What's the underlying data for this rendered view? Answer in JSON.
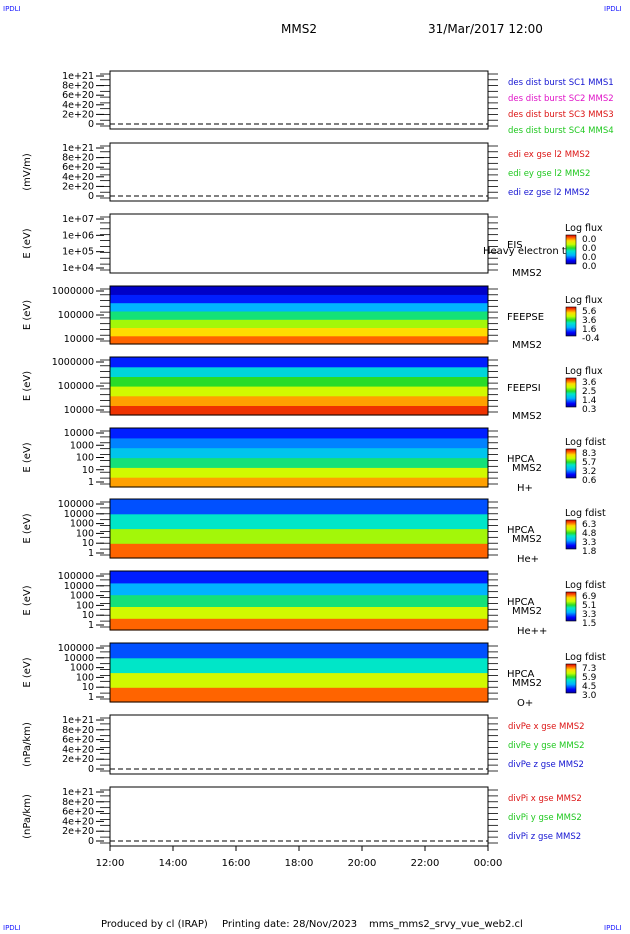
{
  "corner_mark": "IPDLI",
  "header": {
    "spacecraft": "MMS2",
    "datetime": "31/Mar/2017 12:00"
  },
  "footer": {
    "producer": "Produced by cl (IRAP)",
    "printing": "Printing date: 28/Nov/2023",
    "script": "mms_mms2_srvy_vue_web2.cl"
  },
  "colors": {
    "blue": "#1414d2",
    "magenta": "#e014c8",
    "red": "#dc1414",
    "green": "#1ec81e"
  },
  "chart_data": [
    {
      "type": "line",
      "id": "des-dist",
      "ylabel": "",
      "ticks": [
        "1e+21",
        "8e+20",
        "6e+20",
        "4e+20",
        "2e+20",
        "0"
      ],
      "legend": [
        {
          "text": "des dist burst SC1 MMS1",
          "color": "blue"
        },
        {
          "text": "des dist burst SC2 MMS2",
          "color": "magenta"
        },
        {
          "text": "des dist burst SC3 MMS3",
          "color": "red"
        },
        {
          "text": "des dist burst SC4 MMS4",
          "color": "green"
        }
      ]
    },
    {
      "type": "line",
      "id": "edi-e",
      "ylabel": "(mV/m)",
      "ticks": [
        "1e+21",
        "8e+20",
        "6e+20",
        "4e+20",
        "2e+20",
        "0"
      ],
      "legend": [
        {
          "text": "edi ex gse l2 MMS2",
          "color": "red"
        },
        {
          "text": "edi ey gse l2 MMS2",
          "color": "green"
        },
        {
          "text": "edi ez gse l2 MMS2",
          "color": "blue"
        }
      ]
    },
    {
      "type": "heatmap",
      "id": "eis",
      "ylabel": "E (eV)",
      "ticks": [
        "1e+07",
        "1e+06",
        "1e+05",
        "1e+04"
      ],
      "labels": [
        "EIS",
        "MMS2"
      ],
      "overlay": "Heavy electron to",
      "cbar_title": "Log flux",
      "cbar_values": [
        "0.0",
        "0.0",
        "0.0",
        "0.0"
      ],
      "z_profile": []
    },
    {
      "type": "heatmap",
      "id": "feeps-e",
      "ylabel": "E (eV)",
      "ticks": [
        "1000000",
        "100000",
        "10000"
      ],
      "labels": [
        "FEEPSE",
        "MMS2"
      ],
      "overlay": "",
      "cbar_title": "Log flux",
      "cbar_values": [
        "5.6",
        "3.6",
        "1.6",
        "-0.4"
      ],
      "z_profile": [
        0.1,
        0.2,
        0.35,
        0.5,
        0.7,
        0.85,
        0.95
      ]
    },
    {
      "type": "heatmap",
      "id": "feeps-i",
      "ylabel": "E (eV)",
      "ticks": [
        "1000000",
        "100000",
        "10000"
      ],
      "labels": [
        "FEEPSI",
        "MMS2"
      ],
      "overlay": "",
      "cbar_title": "Log flux",
      "cbar_values": [
        "3.6",
        "2.5",
        "1.4",
        "0.3"
      ],
      "z_profile": [
        0.05,
        0.15,
        0.3,
        0.45,
        0.6,
        0.85
      ]
    },
    {
      "type": "heatmap",
      "id": "hpca-h",
      "ylabel": "E (eV)",
      "ticks": [
        "10000",
        "1000",
        "100",
        "10",
        "1"
      ],
      "labels": [
        "HPCA",
        "MMS2",
        "H+"
      ],
      "overlay": "",
      "cbar_title": "Log fdist",
      "cbar_values": [
        "8.3",
        "5.7",
        "3.2",
        "0.6"
      ],
      "z_profile": [
        0.15,
        0.3,
        0.5,
        0.65,
        0.75,
        0.85
      ]
    },
    {
      "type": "heatmap",
      "id": "hpca-he",
      "ylabel": "E (eV)",
      "ticks": [
        "100000",
        "10000",
        "1000",
        "100",
        "10",
        "1"
      ],
      "labels": [
        "HPCA",
        "MMS2",
        "He+"
      ],
      "overlay": "",
      "cbar_title": "Log fdist",
      "cbar_values": [
        "6.3",
        "4.8",
        "3.3",
        "1.8"
      ],
      "z_profile": [
        0.1,
        0.35,
        0.55,
        0.8
      ]
    },
    {
      "type": "heatmap",
      "id": "hpca-he2",
      "ylabel": "E (eV)",
      "ticks": [
        "100000",
        "10000",
        "1000",
        "100",
        "10",
        "1"
      ],
      "labels": [
        "HPCA",
        "MMS2",
        "He++"
      ],
      "overlay": "",
      "cbar_title": "Log fdist",
      "cbar_values": [
        "6.9",
        "5.1",
        "3.3",
        "1.5"
      ],
      "z_profile": [
        0.1,
        0.3,
        0.5,
        0.7,
        0.85
      ]
    },
    {
      "type": "heatmap",
      "id": "hpca-o",
      "ylabel": "E (eV)",
      "ticks": [
        "100000",
        "10000",
        "1000",
        "100",
        "10",
        "1"
      ],
      "labels": [
        "HPCA",
        "MMS2",
        "O+"
      ],
      "overlay": "",
      "cbar_title": "Log fdist",
      "cbar_values": [
        "7.3",
        "5.9",
        "4.5",
        "3.0"
      ],
      "z_profile": [
        0.1,
        0.3,
        0.55,
        0.8
      ]
    },
    {
      "type": "line",
      "id": "divpe",
      "ylabel": "(nPa/km)",
      "ticks": [
        "1e+21",
        "8e+20",
        "6e+20",
        "4e+20",
        "2e+20",
        "0"
      ],
      "legend": [
        {
          "text": "divPe x gse MMS2",
          "color": "red"
        },
        {
          "text": "divPe y gse MMS2",
          "color": "green"
        },
        {
          "text": "divPe z gse MMS2",
          "color": "blue"
        }
      ]
    },
    {
      "type": "line",
      "id": "divpi",
      "ylabel": "(nPa/km)",
      "ticks": [
        "1e+21",
        "8e+20",
        "6e+20",
        "4e+20",
        "2e+20",
        "0"
      ],
      "legend": [
        {
          "text": "divPi x gse MMS2",
          "color": "red"
        },
        {
          "text": "divPi y gse MMS2",
          "color": "green"
        },
        {
          "text": "divPi z gse MMS2",
          "color": "blue"
        }
      ]
    }
  ],
  "time_axis": [
    "12:00",
    "14:00",
    "16:00",
    "18:00",
    "20:00",
    "22:00",
    "00:00"
  ]
}
